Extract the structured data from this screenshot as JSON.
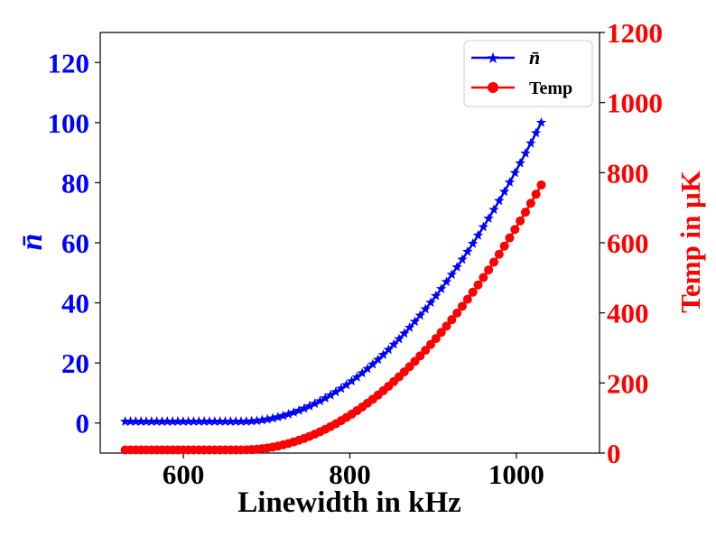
{
  "chart_data": {
    "type": "line",
    "xlabel": "Linewidth in kHz",
    "ylabel_left": "n̄",
    "ylabel_right": "Temp in μK",
    "xlim": [
      500,
      1100
    ],
    "ylim_left": [
      -10,
      130
    ],
    "ylim_right": [
      0,
      1200
    ],
    "x_ticks": [
      600,
      800,
      1000
    ],
    "y_ticks_left": [
      0,
      20,
      40,
      60,
      80,
      100,
      120
    ],
    "y_ticks_right": [
      0,
      200,
      400,
      600,
      800,
      1000,
      1200
    ],
    "legend_position": "top-right",
    "colors": {
      "left_axis": "#0000ff",
      "right_axis": "#ff0000",
      "series_nbar": "#0000ff",
      "series_temp": "#ff0000"
    },
    "series": [
      {
        "name": "n̄",
        "axis": "left",
        "marker": "star",
        "color": "#0000ff",
        "x_range": [
          530,
          1030
        ],
        "points": 80,
        "curve": {
          "y_at_x_min": 0.5,
          "y_at_x_max": 100,
          "knee_x": 670
        }
      },
      {
        "name": "Temp",
        "axis": "right",
        "marker": "circle",
        "color": "#ff0000",
        "x_range": [
          530,
          1030
        ],
        "points": 80,
        "curve": {
          "y_at_x_min": 9,
          "y_at_x_max": 765,
          "knee_x": 670
        }
      }
    ]
  }
}
